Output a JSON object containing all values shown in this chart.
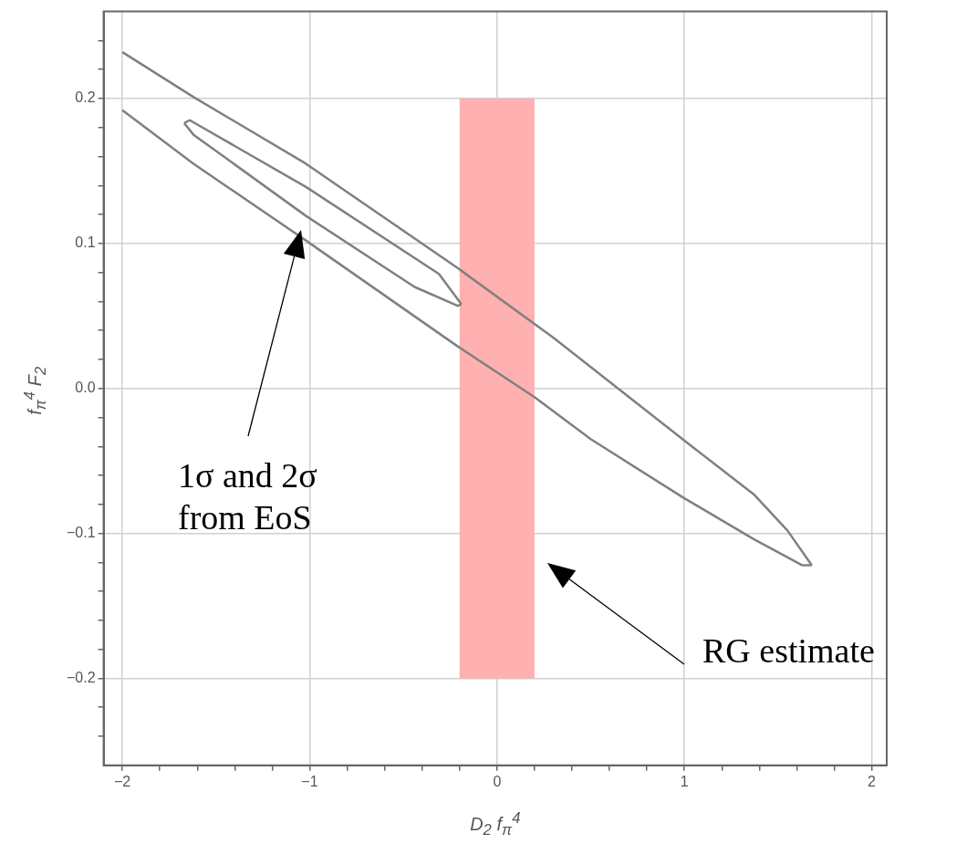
{
  "chart_data": {
    "type": "line",
    "xlabel": "D$_{2}$ f$_{π}$$^{4}$",
    "ylabel": "f$_{π}$$^{4}$ F$_{2}$",
    "xlim": [
      -2.1,
      2.08
    ],
    "ylim": [
      -0.26,
      0.26
    ],
    "xticks": [
      {
        "value": -2,
        "label": "−2"
      },
      {
        "value": -1.8,
        "label": null
      },
      {
        "value": -1.6,
        "label": null
      },
      {
        "value": -1.4,
        "label": null
      },
      {
        "value": -1.2,
        "label": null
      },
      {
        "value": -1,
        "label": "−1"
      },
      {
        "value": -0.8,
        "label": null
      },
      {
        "value": -0.6,
        "label": null
      },
      {
        "value": -0.4,
        "label": null
      },
      {
        "value": -0.2,
        "label": null
      },
      0,
      {
        "value": 0.2,
        "label": null
      },
      {
        "value": 0.4,
        "label": null
      },
      {
        "value": 0.6,
        "label": null
      },
      {
        "value": 0.8,
        "label": null
      },
      1,
      {
        "value": 1.2,
        "label": null
      },
      {
        "value": 1.4,
        "label": null
      },
      {
        "value": 1.6,
        "label": null
      },
      {
        "value": 1.8,
        "label": null
      },
      2
    ],
    "yticks": [
      {
        "value": -0.24,
        "label": null
      },
      {
        "value": -0.22,
        "label": null
      },
      {
        "value": -0.2,
        "label": "−0.2"
      },
      {
        "value": -0.18,
        "label": null
      },
      {
        "value": -0.16,
        "label": null
      },
      {
        "value": -0.14,
        "label": null
      },
      {
        "value": -0.12,
        "label": null
      },
      {
        "value": -0.1,
        "label": "−0.1"
      },
      {
        "value": -0.08,
        "label": null
      },
      {
        "value": -0.06,
        "label": null
      },
      {
        "value": -0.04,
        "label": null
      },
      {
        "value": -0.02,
        "label": null
      },
      {
        "value": 0,
        "label": "0.0"
      },
      {
        "value": 0.02,
        "label": null
      },
      {
        "value": 0.04,
        "label": null
      },
      {
        "value": 0.06,
        "label": null
      },
      {
        "value": 0.08,
        "label": null
      },
      0.1,
      {
        "value": 0.12,
        "label": null
      },
      {
        "value": 0.14,
        "label": null
      },
      {
        "value": 0.16,
        "label": null
      },
      {
        "value": 0.18,
        "label": null
      },
      0.2,
      {
        "value": 0.22,
        "label": null
      },
      {
        "value": 0.24,
        "label": null
      }
    ],
    "grid": true,
    "legend": false,
    "marker": "none",
    "series": [
      {
        "type": "area",
        "color": "#ffb0b0",
        "x": [
          -0.2,
          0.2,
          0.2,
          -0.2,
          -0.2
        ],
        "values": [
          0.2,
          0.2,
          -0.2,
          -0.2,
          0.2
        ]
      },
      {
        "type": "line",
        "color": "#808080",
        "x": [
          -2,
          -1.62,
          -1.02,
          -0.21,
          0.3,
          0.99,
          1.37,
          1.55,
          1.68
        ],
        "values": [
          0.232,
          0.201,
          0.155,
          0.083,
          0.035,
          -0.035,
          -0.073,
          -0.098,
          -0.122
        ]
      },
      {
        "type": "line",
        "color": "#808080",
        "x": [
          -2,
          -1.62,
          -1.02,
          -0.21,
          0.2,
          0.5,
          0.99,
          1.37,
          1.63,
          1.68
        ],
        "values": [
          0.192,
          0.155,
          0.102,
          0.029,
          -0.006,
          -0.035,
          -0.075,
          -0.104,
          -0.122,
          -0.122
        ]
      },
      {
        "type": "line",
        "color": "#808080",
        "x": [
          -1.67,
          -1.64,
          -1.02,
          -0.31,
          -0.19
        ],
        "values": [
          0.183,
          0.185,
          0.139,
          0.079,
          0.058
        ]
      },
      {
        "type": "line",
        "color": "#808080",
        "x": [
          -1.67,
          -1.62,
          -1.02,
          -0.44,
          -0.21,
          -0.19
        ],
        "values": [
          0.183,
          0.175,
          0.119,
          0.07,
          0.057,
          0.058
        ]
      }
    ],
    "annotations": [
      "1σ and 2σ from EoS",
      "RG estimate"
    ]
  }
}
